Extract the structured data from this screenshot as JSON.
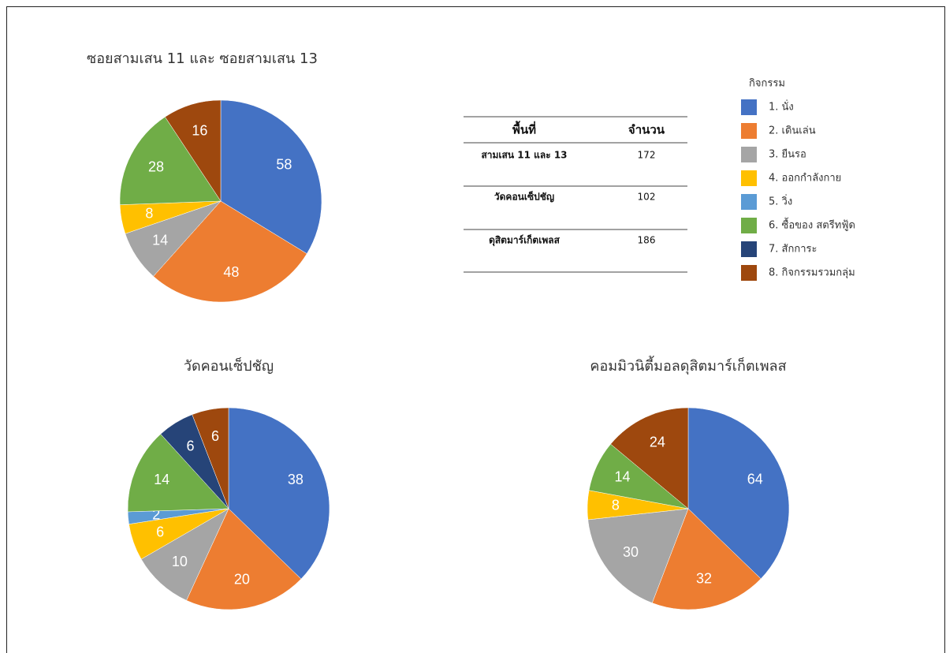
{
  "chart_data": [
    {
      "type": "pie",
      "title": "ซอยสามเสน 11 และ ซอยสามเสน 13",
      "values": [
        58,
        48,
        14,
        8,
        null,
        28,
        null,
        16
      ]
    },
    {
      "type": "pie",
      "title": "วัดคอนเซ็ปชัญ",
      "values": [
        38,
        20,
        10,
        6,
        2,
        14,
        6,
        6
      ]
    },
    {
      "type": "pie",
      "title": "คอมมิวนิตี้มอลดุสิตมาร์เก็ตเพลส",
      "values": [
        64,
        32,
        30,
        8,
        null,
        14,
        null,
        24
      ]
    }
  ],
  "legend": {
    "title": "กิจกรรม",
    "categories": [
      "1. นั่ง",
      "2. เดินเล่น",
      "3. ยืนรอ",
      "4. ออกกำลังกาย",
      "5. วิ่ง",
      "6. ซื้อของ สตรีทฟู้ด",
      "7. สักการะ",
      "8. กิจกรรมรวมกลุ่ม"
    ],
    "colors": [
      "#4472c4",
      "#ed7d31",
      "#a5a5a5",
      "#ffc000",
      "#5b9bd5",
      "#70ad47",
      "#264478",
      "#9e480e"
    ]
  },
  "table": {
    "header": [
      "พื้นที่",
      "จำนวน"
    ],
    "rows": [
      [
        "สามเสน 11 และ 13",
        172
      ],
      [
        "วัดคอนเซ็ปชัญ",
        102
      ],
      [
        "ดุสิตมาร์เก็ตเพลส",
        186
      ]
    ]
  }
}
